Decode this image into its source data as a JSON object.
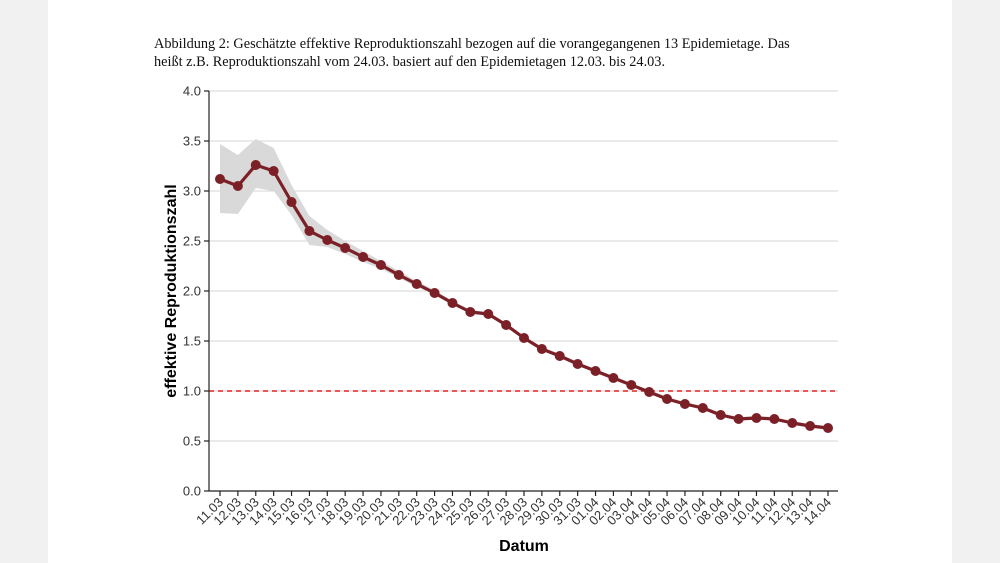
{
  "caption": {
    "line1": "Abbildung 2: Geschätzte effektive Reproduktionszahl bezogen auf die vorangegangenen 13 Epidemietage. Das",
    "line2": "heißt z.B. Reproduktionszahl vom 24.03. basiert auf den Epidemietagen 12.03. bis 24.03."
  },
  "colors": {
    "line": "#7b2027",
    "band": "#d9d9d9",
    "reference": "#e02020",
    "grid": "#d6d6d6"
  },
  "chart_data": {
    "type": "line",
    "xlabel": "Datum",
    "ylabel": "effektive Reproduktionszahl",
    "ylim": [
      0,
      4
    ],
    "yticks": [
      "0.0",
      "0.5",
      "1.0",
      "1.5",
      "2.0",
      "2.5",
      "3.0",
      "3.5",
      "4.0"
    ],
    "ytick_values": [
      0,
      0.5,
      1,
      1.5,
      2,
      2.5,
      3,
      3.5,
      4
    ],
    "grid": "horizontal",
    "reference_line": {
      "y": 1.0,
      "style": "dashed"
    },
    "categories": [
      "11.03",
      "12.03",
      "13.03",
      "14.03",
      "15.03",
      "16.03",
      "17.03",
      "18.03",
      "19.03",
      "20.03",
      "21.03",
      "22.03",
      "23.03",
      "24.03",
      "25.03",
      "26.03",
      "27.03",
      "28.03",
      "29.03",
      "30.03",
      "31.03",
      "01.04",
      "02.04",
      "03.04",
      "04.04",
      "05.04",
      "06.04",
      "07.04",
      "08.04",
      "09.04",
      "10.04",
      "11.04",
      "12.04",
      "13.04",
      "14.04"
    ],
    "series": [
      {
        "values": [
          3.12,
          3.05,
          3.26,
          3.2,
          2.89,
          2.6,
          2.51,
          2.43,
          2.34,
          2.26,
          2.16,
          2.07,
          1.98,
          1.88,
          1.79,
          1.77,
          1.66,
          1.53,
          1.42,
          1.35,
          1.27,
          1.2,
          1.13,
          1.06,
          0.99,
          0.92,
          0.87,
          0.83,
          0.76,
          0.72,
          0.73,
          0.72,
          0.68,
          0.65,
          0.63
        ],
        "lower": [
          2.78,
          2.77,
          3.03,
          3.0,
          2.76,
          2.46,
          2.44,
          2.37,
          2.29,
          2.22,
          2.13,
          2.04,
          1.96,
          1.86,
          1.78,
          1.76,
          1.65,
          1.52,
          1.41,
          1.34,
          1.26,
          1.19,
          1.12,
          1.05,
          0.98,
          0.91,
          0.86,
          0.82,
          0.75,
          0.71,
          0.72,
          0.71,
          0.67,
          0.64,
          0.62
        ],
        "upper": [
          3.47,
          3.36,
          3.52,
          3.43,
          3.06,
          2.75,
          2.61,
          2.5,
          2.4,
          2.3,
          2.2,
          2.1,
          2.01,
          1.9,
          1.81,
          1.79,
          1.68,
          1.55,
          1.44,
          1.37,
          1.29,
          1.22,
          1.15,
          1.08,
          1.01,
          0.94,
          0.89,
          0.85,
          0.78,
          0.74,
          0.75,
          0.74,
          0.7,
          0.67,
          0.65
        ]
      }
    ]
  }
}
